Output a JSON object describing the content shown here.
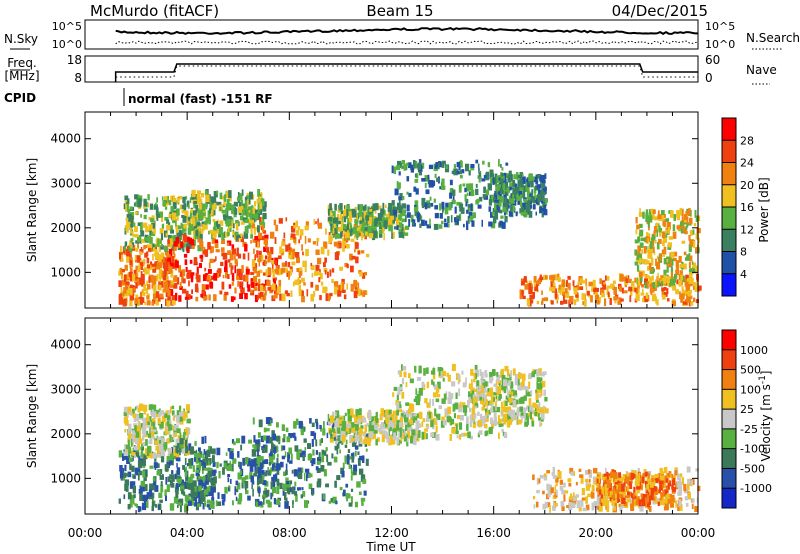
{
  "header": {
    "station": "McMurdo (fitACF)",
    "beam": "Beam 15",
    "date": "04/Dec/2015"
  },
  "summary_labels": {
    "nsky": "N.Sky",
    "nsearch": "N.Search",
    "nsky_ticks": [
      "10^5",
      "10^0"
    ],
    "nsearch_ticks": [
      "10^5",
      "10^0"
    ],
    "freq": "Freq.",
    "freq_unit": "[MHz]",
    "freq_ticks": [
      "18",
      "8"
    ],
    "nave": "Nave",
    "nave_ticks": [
      "60",
      "0"
    ],
    "cpid": "CPID",
    "cpid_text": "normal (fast) -151 RF"
  },
  "chart_data": [
    {
      "type": "heatmap",
      "name": "power",
      "ylabel": "Slant Range [km]",
      "xlabel": "",
      "x_ticks": [
        "00:00",
        "04:00",
        "08:00",
        "12:00",
        "16:00",
        "20:00",
        "00:00"
      ],
      "y_ticks": [
        1000,
        2000,
        3000,
        4000
      ],
      "ylim": [
        200,
        4600
      ],
      "xlim_hours": [
        0,
        24
      ],
      "colorbar": {
        "label": "Power [dB]",
        "ticks": [
          4,
          8,
          12,
          16,
          20,
          24,
          28
        ],
        "colors": [
          "#0a14ff",
          "#2050a8",
          "#3a8060",
          "#58b040",
          "#f0c020",
          "#f08010",
          "#f04010",
          "#ff0000"
        ]
      },
      "blobs": [
        {
          "t": [
            1.3,
            3.5
          ],
          "r": [
            300,
            1600
          ],
          "level": 5
        },
        {
          "t": [
            1.5,
            4.5
          ],
          "r": [
            1500,
            2700
          ],
          "level": 3
        },
        {
          "t": [
            3.0,
            7.5
          ],
          "r": [
            400,
            1800
          ],
          "level": 6
        },
        {
          "t": [
            4.0,
            7.0
          ],
          "r": [
            1800,
            2800
          ],
          "level": 3
        },
        {
          "t": [
            6.5,
            11.0
          ],
          "r": [
            400,
            2200
          ],
          "level": 5
        },
        {
          "t": [
            9.5,
            12.5
          ],
          "r": [
            1800,
            2500
          ],
          "level": 3
        },
        {
          "t": [
            12.0,
            16.5
          ],
          "r": [
            2000,
            3500
          ],
          "level": 2
        },
        {
          "t": [
            16.0,
            18.0
          ],
          "r": [
            2300,
            3200
          ],
          "level": 2
        },
        {
          "t": [
            17.0,
            24.0
          ],
          "r": [
            300,
            900
          ],
          "level": 5
        },
        {
          "t": [
            21.5,
            24.0
          ],
          "r": [
            700,
            2400
          ],
          "level": 4
        }
      ]
    },
    {
      "type": "heatmap",
      "name": "velocity",
      "ylabel": "Slant Range [km]",
      "xlabel": "Time UT",
      "x_ticks": [
        "00:00",
        "04:00",
        "08:00",
        "12:00",
        "16:00",
        "20:00",
        "00:00"
      ],
      "y_ticks": [
        1000,
        2000,
        3000,
        4000
      ],
      "ylim": [
        200,
        4600
      ],
      "xlim_hours": [
        0,
        24
      ],
      "colorbar": {
        "label": "Velocity [m s",
        "label_sup": "-1",
        "label_end": "]",
        "ticks": [
          "1000",
          "500",
          "100",
          "25",
          "-25",
          "-100",
          "-500",
          "-1000"
        ],
        "colors": [
          "#1428c8",
          "#2850a8",
          "#3a7a5a",
          "#58b040",
          "#c8c8c8",
          "#f0c020",
          "#f08010",
          "#f04010",
          "#ff0000"
        ]
      },
      "blobs": [
        {
          "t": [
            1.3,
            5.0
          ],
          "r": [
            300,
            1700
          ],
          "level": 2
        },
        {
          "t": [
            1.5,
            4.0
          ],
          "r": [
            1500,
            2600
          ],
          "level": 4
        },
        {
          "t": [
            3.5,
            8.0
          ],
          "r": [
            400,
            1900
          ],
          "level": 2
        },
        {
          "t": [
            6.5,
            11.0
          ],
          "r": [
            400,
            2300
          ],
          "level": 2
        },
        {
          "t": [
            9.5,
            13.0
          ],
          "r": [
            1800,
            2500
          ],
          "level": 4
        },
        {
          "t": [
            12.0,
            16.5
          ],
          "r": [
            1900,
            3500
          ],
          "level": 4
        },
        {
          "t": [
            15.0,
            18.0
          ],
          "r": [
            2200,
            3400
          ],
          "level": 4
        },
        {
          "t": [
            17.5,
            24.0
          ],
          "r": [
            300,
            1200
          ],
          "level": 5
        },
        {
          "t": [
            20.0,
            23.0
          ],
          "r": [
            400,
            1100
          ],
          "level": 6
        }
      ]
    }
  ]
}
